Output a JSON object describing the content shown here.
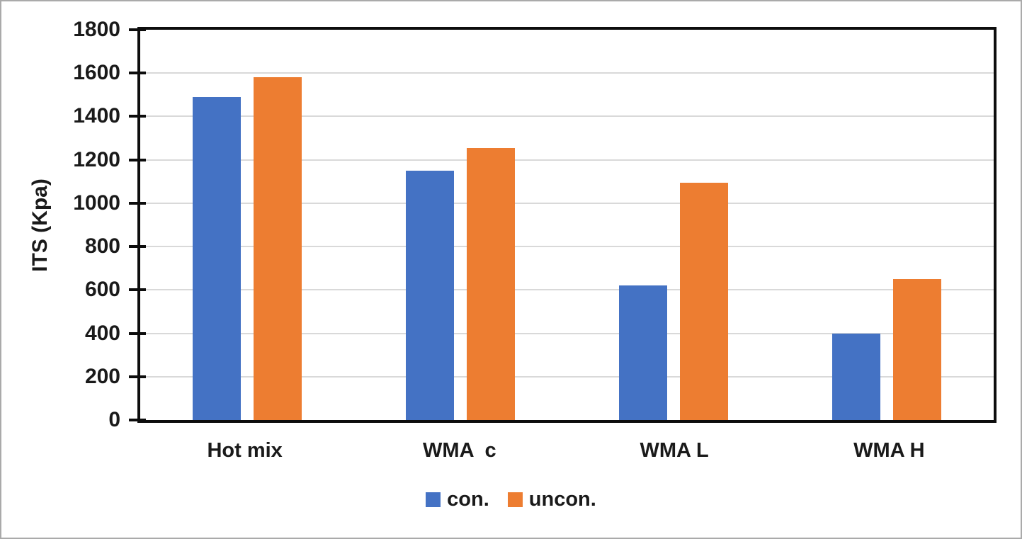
{
  "figure": {
    "background": "#ffffff",
    "border_color": "#aaaaaa",
    "axis_color": "#0d0d0d",
    "gridline_color": "#d9d9d9",
    "text_color": "#1a1a1a"
  },
  "chart_data": {
    "type": "bar",
    "title": "",
    "xlabel": "",
    "ylabel": "ITS (Kpa)",
    "categories": [
      "Hot mix",
      "WMA  c",
      "WMA L",
      "WMA H"
    ],
    "series": [
      {
        "name": "con.",
        "color": "#4472C4",
        "values": [
          1490,
          1150,
          620,
          400
        ]
      },
      {
        "name": "uncon.",
        "color": "#ED7D31",
        "values": [
          1580,
          1255,
          1095,
          650
        ]
      }
    ],
    "ylim": [
      0,
      1800
    ],
    "yticks": [
      0,
      200,
      400,
      600,
      800,
      1000,
      1200,
      1400,
      1600,
      1800
    ],
    "grid": true,
    "legend_position": "bottom",
    "plot_border": true
  }
}
